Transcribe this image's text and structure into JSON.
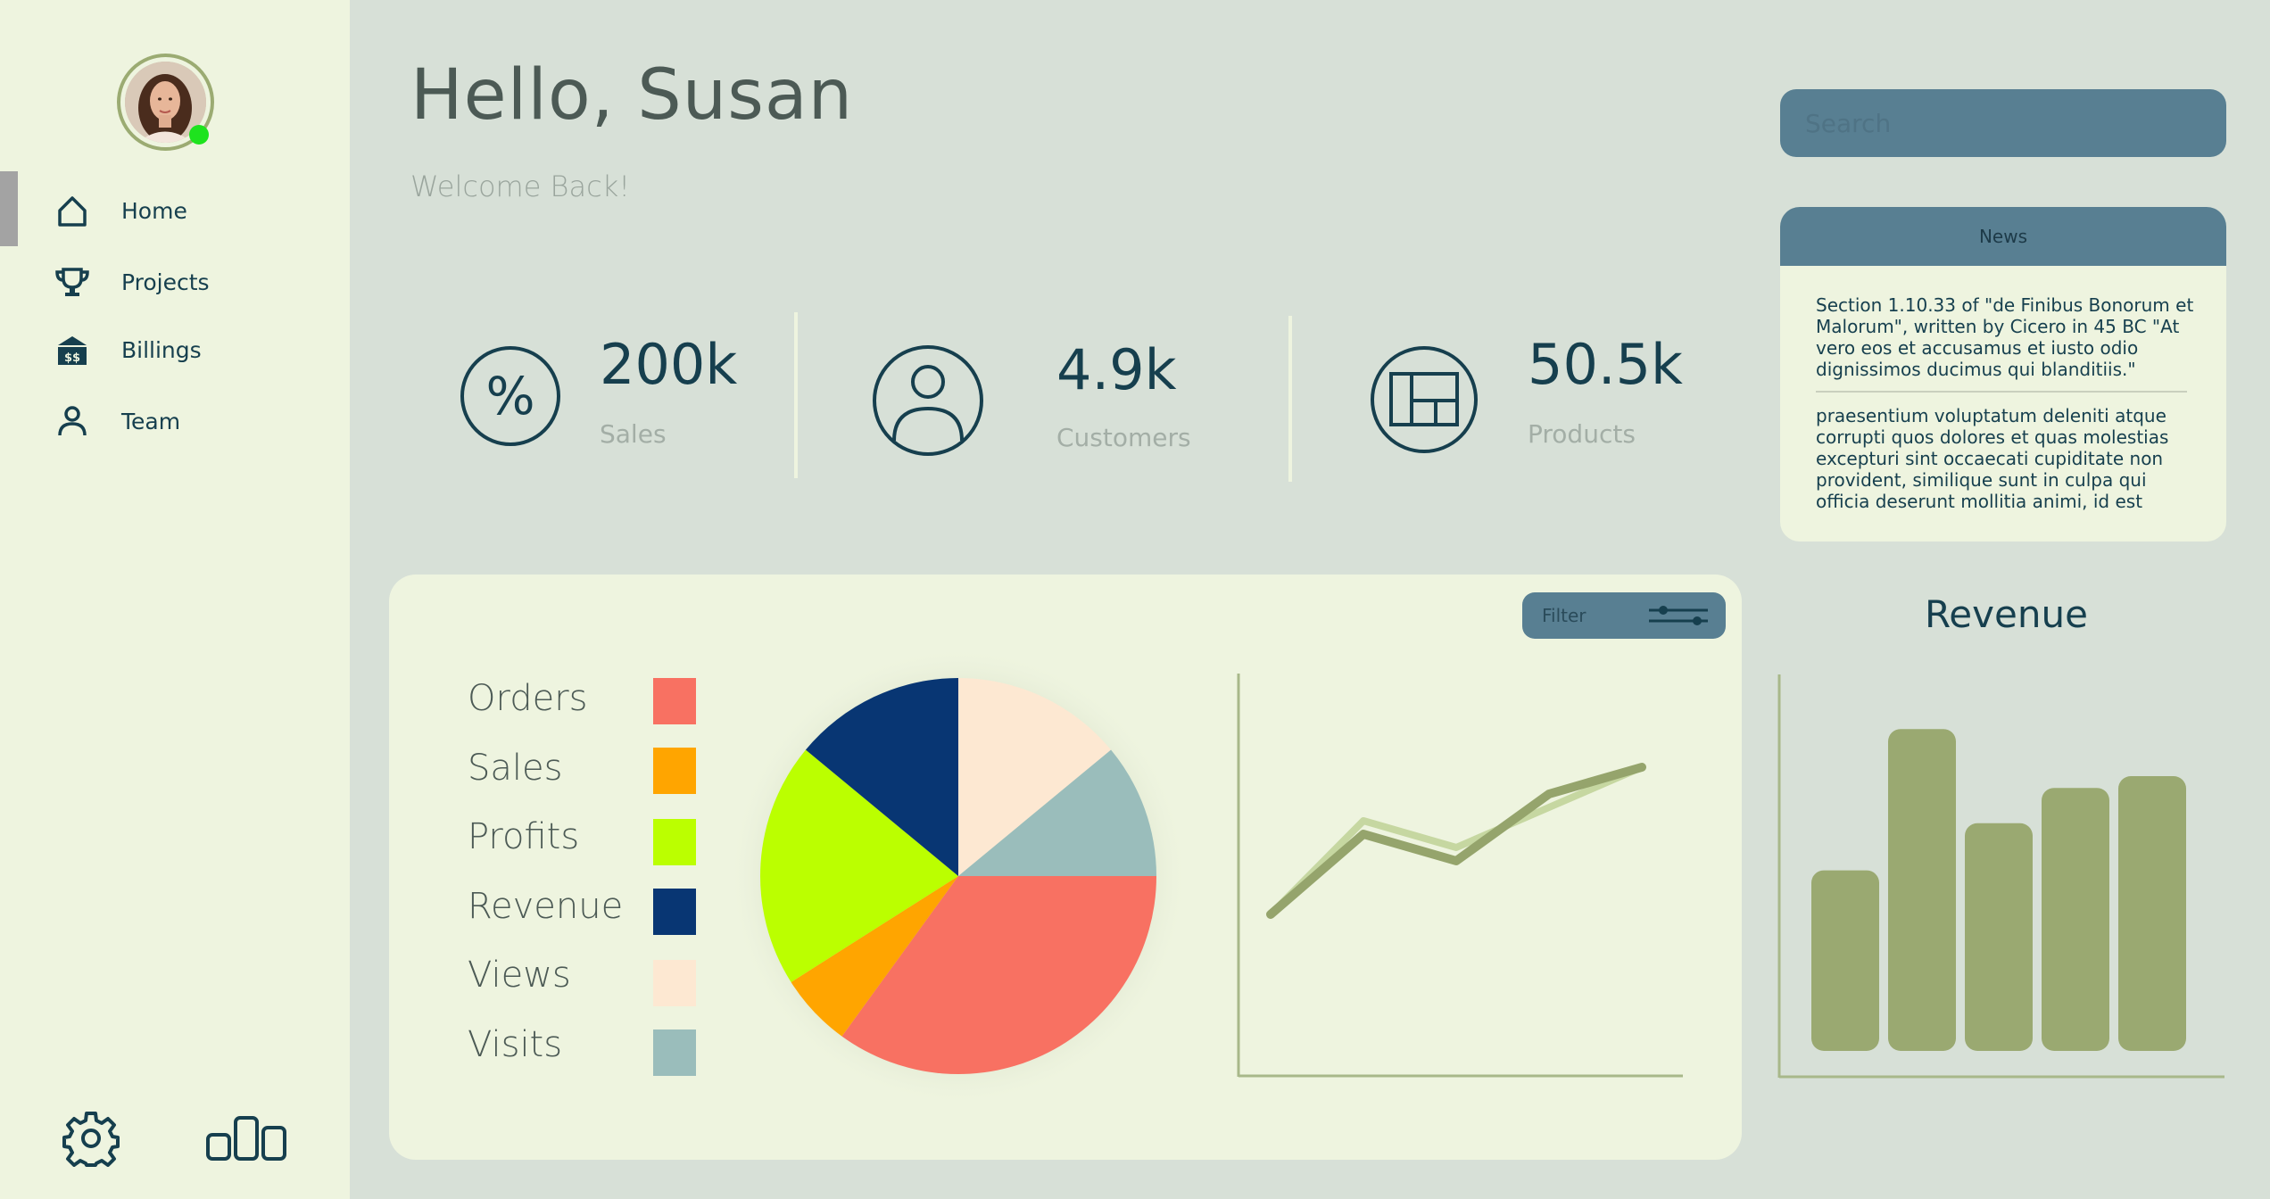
{
  "user": {
    "greeting": "Hello, Susan",
    "welcome": "Welcome Back!"
  },
  "sidebar": {
    "items": [
      {
        "label": "Home",
        "icon": "home-icon",
        "active": true
      },
      {
        "label": "Projects",
        "icon": "trophy-icon"
      },
      {
        "label": "Billings",
        "icon": "billing-icon"
      },
      {
        "label": "Team",
        "icon": "person-icon"
      }
    ],
    "bottom": [
      {
        "icon": "gear-icon"
      },
      {
        "icon": "bar-chart-icon"
      }
    ],
    "online_color": "#1ee31e"
  },
  "stats": [
    {
      "value": "200k",
      "label": "Sales",
      "icon": "percent-icon"
    },
    {
      "value": "4.9k",
      "label": "Customers",
      "icon": "user-circle-icon"
    },
    {
      "value": "50.5k",
      "label": "Products",
      "icon": "layout-icon"
    }
  ],
  "search": {
    "placeholder": "Search"
  },
  "news": {
    "title": "News",
    "paragraphs": [
      "Section 1.10.33 of \"de Finibus Bonorum et Malorum\", written by Cicero in 45 BC \"At vero eos et accusamus et iusto odio dignissimos ducimus qui blanditiis.\"",
      "praesentium voluptatum deleniti atque corrupti quos dolores et quas molestias excepturi sint occaecati cupiditate non provident, similique sunt in culpa qui officia deserunt mollitia animi, id est"
    ]
  },
  "filter": {
    "label": "Filter"
  },
  "legend": [
    {
      "label": "Orders",
      "color": "#f87162"
    },
    {
      "label": "Sales",
      "color": "#ffa500"
    },
    {
      "label": "Profits",
      "color": "#bbff00"
    },
    {
      "label": "Revenue",
      "color": "#083673"
    },
    {
      "label": "Views",
      "color": "#fde8d2"
    },
    {
      "label": "Visits",
      "color": "#9abdbb"
    }
  ],
  "revenue_title": "Revenue",
  "chart_data": [
    {
      "type": "pie",
      "categories": [
        "Orders",
        "Sales",
        "Profits",
        "Revenue",
        "Views",
        "Visits"
      ],
      "values": [
        35,
        6,
        20,
        14,
        14,
        11
      ],
      "colors": [
        "#f87162",
        "#ffa500",
        "#bbff00",
        "#083673",
        "#fde8d2",
        "#9abdbb"
      ]
    },
    {
      "type": "line",
      "x": [
        1,
        2,
        3,
        4,
        5
      ],
      "series": [
        {
          "values": [
            2,
            9,
            7,
            10,
            13
          ],
          "color": "#c6d7a1"
        },
        {
          "values": [
            2,
            8,
            6,
            11,
            13
          ],
          "color": "#95a46c"
        }
      ],
      "grid": false
    },
    {
      "type": "bar",
      "values": [
        46,
        82,
        58,
        67,
        70
      ],
      "ylim": [
        0,
        100
      ],
      "color": "#9aa971",
      "grid": false
    }
  ]
}
